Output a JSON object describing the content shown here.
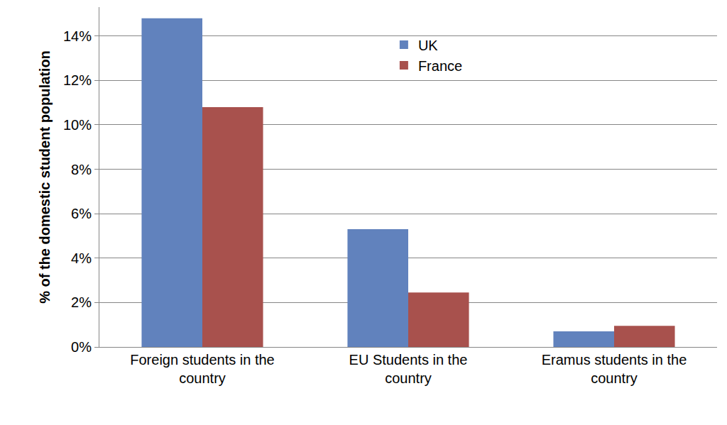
{
  "chart_data": {
    "type": "bar",
    "y_label": "% of the domestic student population",
    "categories": [
      "Foreign students in the country",
      "EU Students in the country",
      "Eramus students in the country"
    ],
    "series": [
      {
        "name": "UK",
        "color": "#6182bd",
        "values": [
          14.8,
          5.3,
          0.7
        ]
      },
      {
        "name": "France",
        "color": "#a8514d",
        "values": [
          10.8,
          2.45,
          0.95
        ]
      }
    ],
    "ylim": [
      0,
      15.3
    ],
    "yticks": [
      {
        "value": 0,
        "label": "0%"
      },
      {
        "value": 2,
        "label": "2%"
      },
      {
        "value": 4,
        "label": "4%"
      },
      {
        "value": 6,
        "label": "6%"
      },
      {
        "value": 8,
        "label": "8%"
      },
      {
        "value": 10,
        "label": "10%"
      },
      {
        "value": 12,
        "label": "12%"
      },
      {
        "value": 14,
        "label": "14%"
      }
    ],
    "grid": true,
    "legend": "top"
  }
}
